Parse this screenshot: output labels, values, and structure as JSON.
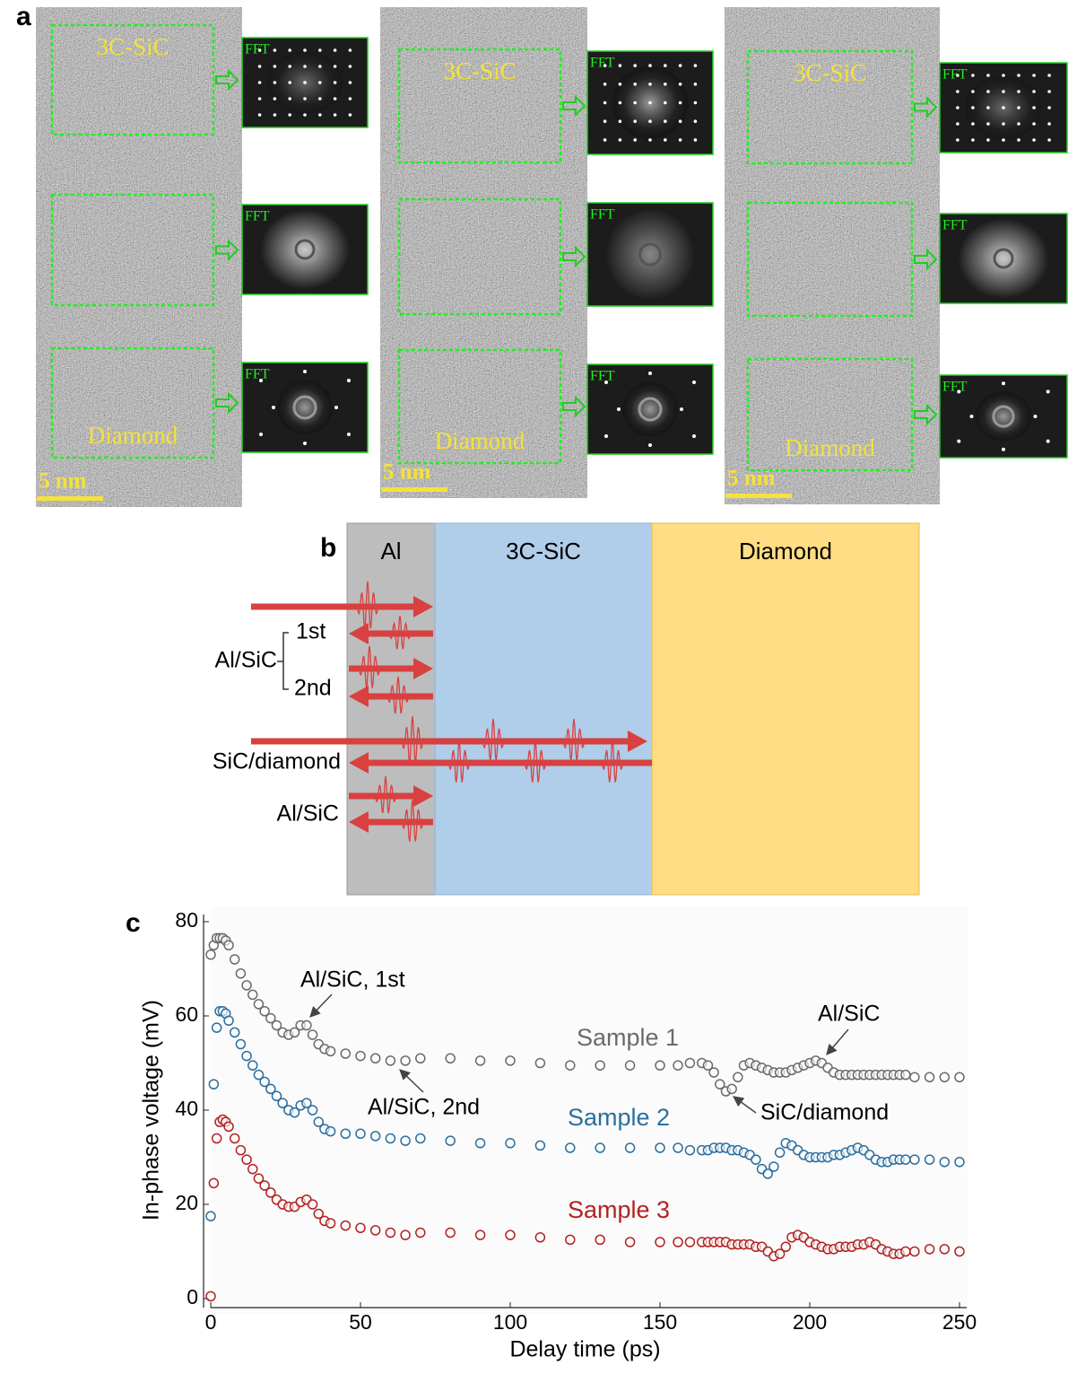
{
  "panel_a": {
    "label": "a",
    "columns": [
      {
        "top": "3C-SiC",
        "bottom": "Diamond",
        "fft": [
          "FFT",
          "FFT",
          "FFT"
        ],
        "scale": "5 nm"
      },
      {
        "top": "3C-SiC",
        "bottom": "Diamond",
        "fft": [
          "FFT",
          "FFT",
          "FFT"
        ],
        "scale": "5 nm"
      },
      {
        "top": "3C-SiC",
        "bottom": "Diamond",
        "fft": [
          "FFT",
          "FFT",
          "FFT"
        ],
        "scale": "5 nm"
      }
    ]
  },
  "panel_b": {
    "label": "b",
    "layers": [
      "Al",
      "3C-SiC",
      "Diamond"
    ],
    "labels": [
      "Al/SiC",
      "1st",
      "2nd",
      "SiC/diamond",
      "Al/SiC"
    ]
  },
  "chart_data": {
    "type": "scatter",
    "label": "c",
    "x_label": "Delay time (ps)",
    "y_label": "In-phase voltage (mV)",
    "xlim": [
      0,
      250
    ],
    "xticks": [
      0,
      50,
      100,
      150,
      200,
      250
    ],
    "ylim": [
      0,
      80
    ],
    "yticks": [
      0,
      20,
      40,
      60,
      80
    ],
    "annotations": [
      "Al/SiC, 1st",
      "Al/SiC, 2nd",
      "Al/SiC",
      "SiC/diamond"
    ],
    "x": [
      0,
      1,
      2,
      3,
      4,
      5,
      6,
      8,
      10,
      12,
      14,
      16,
      18,
      20,
      22,
      24,
      26,
      28,
      30,
      32,
      34,
      36,
      38,
      40,
      45,
      50,
      55,
      60,
      65,
      70,
      80,
      90,
      100,
      110,
      120,
      130,
      140,
      150,
      156,
      160,
      164,
      166,
      168,
      170,
      172,
      174,
      176,
      178,
      180,
      182,
      184,
      186,
      188,
      190,
      192,
      194,
      196,
      198,
      200,
      202,
      204,
      206,
      208,
      210,
      212,
      214,
      216,
      218,
      220,
      222,
      224,
      226,
      228,
      230,
      232,
      235,
      240,
      245,
      250
    ],
    "series": [
      {
        "name": "Sample 1",
        "color": "#6b6b6b",
        "values": [
          73,
          75,
          76.5,
          76.5,
          76.5,
          76,
          75,
          72,
          69,
          66.5,
          64.5,
          62.5,
          61,
          59.5,
          58,
          56.5,
          56,
          56.5,
          58,
          58,
          56,
          54,
          53,
          52.5,
          52,
          51.5,
          51,
          50.5,
          50.5,
          51,
          51,
          50.5,
          50.5,
          50,
          49.5,
          49.5,
          49.5,
          49.5,
          49.5,
          50,
          50,
          49.5,
          48,
          45.5,
          44,
          44.5,
          47,
          49.5,
          50,
          49.5,
          49,
          48.5,
          48,
          48,
          48,
          48.5,
          49,
          49.5,
          50,
          50.5,
          50,
          49,
          48,
          47.5,
          47.5,
          47.5,
          47.5,
          47.5,
          47.5,
          47.5,
          47.5,
          47.5,
          47.5,
          47.5,
          47.5,
          47,
          47,
          47,
          47
        ]
      },
      {
        "name": "Sample 2",
        "color": "#2a6f9e",
        "values": [
          17.5,
          45.5,
          57.5,
          61,
          61,
          60.5,
          59,
          56.5,
          54,
          51.5,
          49.5,
          47.5,
          46,
          44.5,
          43,
          41.5,
          40,
          39.5,
          41,
          41.5,
          40,
          37.5,
          36,
          35.5,
          35,
          35,
          34.5,
          34,
          33.5,
          34,
          33.5,
          33,
          33,
          32.5,
          32,
          32,
          32,
          32,
          32,
          31.5,
          31.5,
          31.5,
          32,
          32,
          32,
          31.5,
          31.5,
          31,
          30.5,
          29.5,
          27.5,
          26.5,
          28,
          31,
          33,
          32.5,
          31.5,
          30.5,
          30,
          30,
          30,
          30,
          30.5,
          30.5,
          31,
          31.5,
          32,
          31.5,
          30.5,
          29.5,
          29,
          29,
          29.5,
          29.5,
          29.5,
          29.5,
          29.5,
          29,
          29
        ]
      },
      {
        "name": "Sample 3",
        "color": "#b22222",
        "values": [
          0.5,
          24.5,
          34,
          37.5,
          38,
          37.5,
          36.5,
          34,
          31.5,
          29.5,
          27.5,
          25.5,
          24,
          22.5,
          21,
          20,
          19.5,
          19.5,
          20.5,
          21,
          20,
          18,
          16.5,
          16,
          15.5,
          15,
          14.5,
          14,
          13.5,
          14,
          14,
          13.5,
          13.5,
          13,
          12.5,
          12.5,
          12,
          12,
          12,
          12,
          12,
          12,
          12,
          12,
          12,
          11.5,
          11.5,
          11.5,
          11.5,
          11,
          11,
          10,
          9,
          9.5,
          11,
          13,
          13.5,
          13,
          12,
          11.5,
          11,
          10.5,
          10.5,
          11,
          11,
          11,
          11.5,
          11.5,
          12,
          11.5,
          10.5,
          10,
          9.5,
          9.5,
          10,
          10,
          10.5,
          10.5,
          10
        ]
      }
    ]
  }
}
